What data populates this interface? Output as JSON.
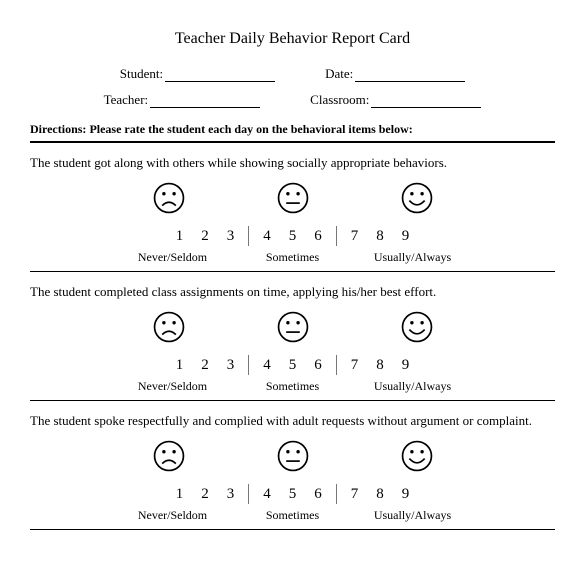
{
  "title": "Teacher Daily Behavior Report Card",
  "fields": {
    "student_label": "Student:",
    "date_label": "Date:",
    "teacher_label": "Teacher:",
    "classroom_label": "Classroom:"
  },
  "directions_label": "Directions:",
  "directions_text": "Please rate the student each day on the behavioral items below:",
  "scale": {
    "numbers": [
      "1",
      "2",
      "3",
      "4",
      "5",
      "6",
      "7",
      "8",
      "9"
    ],
    "labels": [
      "Never/Seldom",
      "Sometimes",
      "Usually/Always"
    ],
    "face_stroke": "#000000",
    "face_fill": "#ffffff",
    "separator_color": "#777777"
  },
  "items": [
    {
      "text": "The student got along with others while showing socially appropriate behaviors."
    },
    {
      "text": "The student completed class assignments on time, applying his/her best effort."
    },
    {
      "text": "The student spoke respectfully and complied with adult requests without argument or complaint."
    }
  ],
  "colors": {
    "background": "#ffffff",
    "text": "#000000",
    "rule": "#000000"
  }
}
